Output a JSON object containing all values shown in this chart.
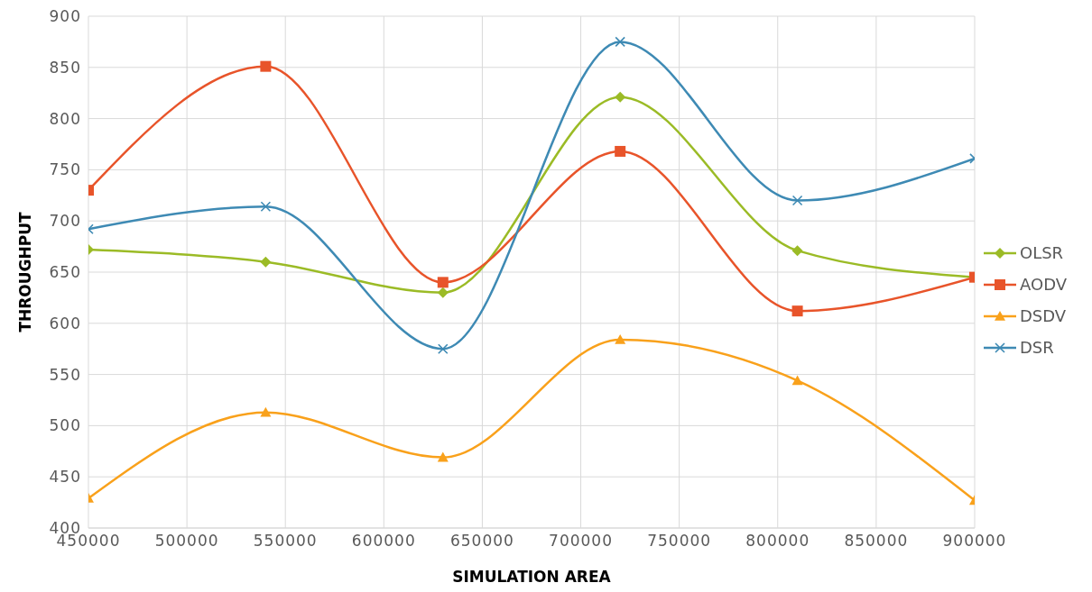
{
  "chart_data": {
    "type": "line",
    "xlabel": "SIMULATION AREA",
    "ylabel": "THROUGHPUT",
    "x": [
      450000,
      540000,
      630000,
      720000,
      810000,
      900000
    ],
    "xlim": [
      450000,
      900000
    ],
    "xticks": [
      450000,
      500000,
      550000,
      600000,
      650000,
      700000,
      750000,
      800000,
      850000,
      900000
    ],
    "ylim": [
      400,
      900
    ],
    "yticks": [
      400,
      450,
      500,
      550,
      600,
      650,
      700,
      750,
      800,
      850,
      900
    ],
    "grid": true,
    "legend": "right",
    "line_style": "solid",
    "series": [
      {
        "name": "OLSR",
        "color": "#9bbb26",
        "marker": "diamond",
        "values": [
          672,
          660,
          630,
          821,
          671,
          645
        ]
      },
      {
        "name": "AODV",
        "color": "#e8542a",
        "marker": "square",
        "values": [
          730,
          851,
          640,
          768,
          612,
          645
        ]
      },
      {
        "name": "DSDV",
        "color": "#f9a11b",
        "marker": "triangle",
        "values": [
          429,
          513,
          469,
          584,
          544,
          427
        ]
      },
      {
        "name": "DSR",
        "color": "#3e8ab4",
        "marker": "cross",
        "values": [
          692,
          714,
          575,
          875,
          720,
          761
        ]
      }
    ]
  }
}
